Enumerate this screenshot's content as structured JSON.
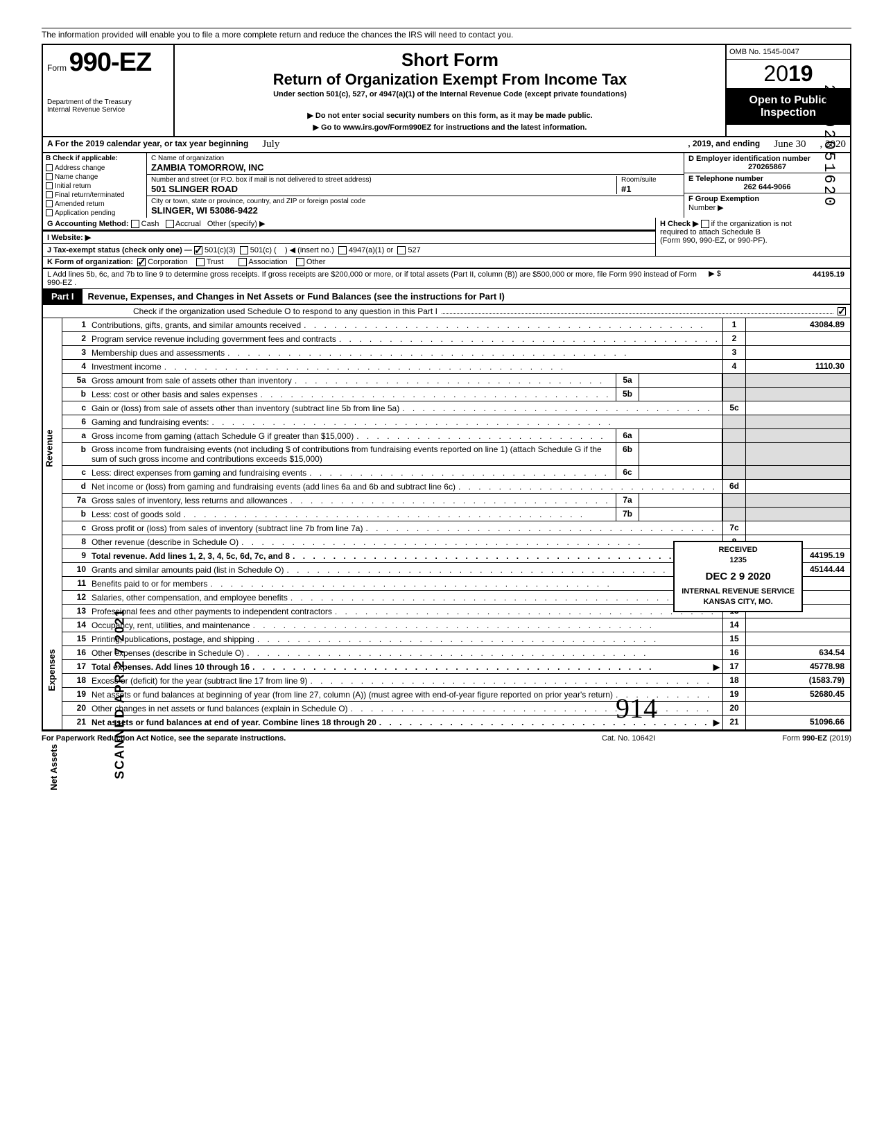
{
  "intro_line": "The information provided will enable you to file a more complete return and reduce the chances the IRS will need to contact you.",
  "form": {
    "prefix": "Form",
    "number": "990-EZ",
    "dept1": "Department of the Treasury",
    "dept2": "Internal Revenue Service"
  },
  "header": {
    "short": "Short Form",
    "title": "Return of Organization Exempt From Income Tax",
    "under": "Under section 501(c), 527, or 4947(a)(1) of the Internal Revenue Code (except private foundations)",
    "note1": "▶ Do not enter social security numbers on this form, as it may be made public.",
    "note2": "▶ Go to www.irs.gov/Form990EZ for instructions and the latest information."
  },
  "right": {
    "omb": "OMB No. 1545-0047",
    "year_prefix": "20",
    "year_suffix": "19",
    "open1": "Open to Public",
    "open2": "Inspection"
  },
  "lineA": {
    "label": "A For the 2019 calendar year, or tax year beginning",
    "begin": "July",
    "mid": ", 2019, and ending",
    "end": "June  30",
    "endyear": ", 2020"
  },
  "B": {
    "label": "B Check if applicable:",
    "opts": [
      "Address change",
      "Name change",
      "Initial return",
      "Final return/terminated",
      "Amended return",
      "Application pending"
    ]
  },
  "C": {
    "name_label": "C Name of organization",
    "name": "ZAMBIA TOMORROW, INC",
    "street_label": "Number and street (or P.O. box if mail is not delivered to street address)",
    "room_label": "Room/suite",
    "street": "501 SLINGER ROAD",
    "room": "#1",
    "city_label": "City or town, state or province, country, and ZIP or foreign postal code",
    "city": "SLINGER, WI 53086-9422"
  },
  "D": {
    "ein_label": "D Employer identification number",
    "ein": "270265867",
    "tel_label": "E Telephone number",
    "tel": "262 644-9066",
    "group_label": "F Group Exemption",
    "group_label2": "Number ▶"
  },
  "G": {
    "label": "G  Accounting Method:",
    "cash": "Cash",
    "accrual": "Accrual",
    "other": "Other (specify) ▶"
  },
  "H": {
    "txt1": "H Check ▶",
    "txt2": "if the organization is not",
    "txt3": "required to attach Schedule B",
    "txt4": "(Form 990, 990-EZ, or 990-PF)."
  },
  "I": {
    "label": "I  Website: ▶"
  },
  "J": {
    "label": "J  Tax-exempt status (check only one) —",
    "a": "501(c)(3)",
    "b": "501(c) (",
    "b2": ") ◀ (insert no.)",
    "c": "4947(a)(1) or",
    "d": "527"
  },
  "K": {
    "label": "K  Form of organization:",
    "corp": "Corporation",
    "trust": "Trust",
    "assoc": "Association",
    "other": "Other"
  },
  "L": {
    "txt": "L  Add lines 5b, 6c, and 7b to line 9 to determine gross receipts. If gross receipts are $200,000 or more, or if total assets (Part II, column (B)) are $500,000 or more, file Form 990 instead of Form 990-EZ .",
    "amt": "44195.19"
  },
  "part1": {
    "tag": "Part I",
    "title": "Revenue, Expenses, and Changes in Net Assets or Fund Balances (see the instructions for Part I)",
    "check": "Check if the organization used Schedule O to respond to any question in this Part I"
  },
  "sections": {
    "revenue": "Revenue",
    "expenses": "Expenses",
    "netassets": "Net Assets"
  },
  "lines": [
    {
      "n": "1",
      "d": "Contributions, gifts, grants, and similar amounts received",
      "rn": "1",
      "rv": "43084.89"
    },
    {
      "n": "2",
      "d": "Program service revenue including government fees and contracts",
      "rn": "2",
      "rv": ""
    },
    {
      "n": "3",
      "d": "Membership dues and assessments",
      "rn": "3",
      "rv": ""
    },
    {
      "n": "4",
      "d": "Investment income",
      "rn": "4",
      "rv": "1110.30"
    },
    {
      "n": "5a",
      "d": "Gross amount from sale of assets other than inventory",
      "mn": "5a",
      "mv": "",
      "shade": true
    },
    {
      "n": "b",
      "d": "Less: cost or other basis and sales expenses",
      "mn": "5b",
      "mv": "",
      "shade": true
    },
    {
      "n": "c",
      "d": "Gain or (loss) from sale of assets other than inventory (subtract line 5b from line 5a)",
      "rn": "5c",
      "rv": ""
    },
    {
      "n": "6",
      "d": "Gaming and fundraising events:",
      "shade_r": true
    },
    {
      "n": "a",
      "d": "Gross income from gaming (attach Schedule G if greater than $15,000)",
      "mn": "6a",
      "mv": "",
      "shade": true
    },
    {
      "n": "b",
      "d": "Gross income from fundraising events (not including  $                  of contributions from fundraising events reported on line 1) (attach Schedule G if the sum of such gross income and contributions exceeds $15,000)",
      "mn": "6b",
      "mv": "",
      "shade": true
    },
    {
      "n": "c",
      "d": "Less: direct expenses from gaming and fundraising events",
      "mn": "6c",
      "mv": "",
      "shade": true
    },
    {
      "n": "d",
      "d": "Net income or (loss) from gaming and fundraising events (add lines 6a and 6b and subtract line 6c)",
      "rn": "6d",
      "rv": ""
    },
    {
      "n": "7a",
      "d": "Gross sales of inventory, less returns and allowances",
      "mn": "7a",
      "mv": "",
      "shade": true
    },
    {
      "n": "b",
      "d": "Less: cost of goods sold",
      "mn": "7b",
      "mv": "",
      "shade": true
    },
    {
      "n": "c",
      "d": "Gross profit or (loss) from sales of inventory (subtract line 7b from line 7a)",
      "rn": "7c",
      "rv": ""
    },
    {
      "n": "8",
      "d": "Other revenue (describe in Schedule O)",
      "rn": "8",
      "rv": ""
    },
    {
      "n": "9",
      "d": "Total revenue. Add lines 1, 2, 3, 4, 5c, 6d, 7c, and 8",
      "rn": "9",
      "rv": "44195.19",
      "bold": true,
      "arrow": true
    },
    {
      "n": "10",
      "d": "Grants and similar amounts paid (list in Schedule O)",
      "rn": "10",
      "rv": "45144.44"
    },
    {
      "n": "11",
      "d": "Benefits paid to or for members",
      "rn": "11",
      "rv": ""
    },
    {
      "n": "12",
      "d": "Salaries, other compensation, and employee benefits",
      "rn": "12",
      "rv": ""
    },
    {
      "n": "13",
      "d": "Professional fees and other payments to independent contractors",
      "rn": "13",
      "rv": ""
    },
    {
      "n": "14",
      "d": "Occupancy, rent, utilities, and maintenance",
      "rn": "14",
      "rv": ""
    },
    {
      "n": "15",
      "d": "Printing, publications, postage, and shipping",
      "rn": "15",
      "rv": ""
    },
    {
      "n": "16",
      "d": "Other expenses (describe in Schedule O)",
      "rn": "16",
      "rv": "634.54"
    },
    {
      "n": "17",
      "d": "Total expenses. Add lines 10 through 16",
      "rn": "17",
      "rv": "45778.98",
      "bold": true,
      "arrow": true
    },
    {
      "n": "18",
      "d": "Excess or (deficit) for the year (subtract line 17 from line 9)",
      "rn": "18",
      "rv": "(1583.79)"
    },
    {
      "n": "19",
      "d": "Net assets or fund balances at beginning of year (from line 27, column (A)) (must agree with end-of-year figure reported on prior year's return)",
      "rn": "19",
      "rv": "52680.45"
    },
    {
      "n": "20",
      "d": "Other changes in net assets or fund balances (explain in Schedule O)",
      "rn": "20",
      "rv": ""
    },
    {
      "n": "21",
      "d": "Net assets or fund balances at end of year. Combine lines 18 through 20",
      "rn": "21",
      "rv": "51096.66",
      "bold": true,
      "arrow": true
    }
  ],
  "stamp": {
    "l1": "RECEIVED",
    "l2": "1235",
    "l3": "DEC 2 9 2020",
    "l4": "INTERNAL REVENUE SERVICE",
    "l5": "KANSAS CITY, MO."
  },
  "scanned": "SCANNED APR 2 7 2021",
  "vertnum": "29492051620",
  "footer": {
    "l": "For Paperwork Reduction Act Notice, see the separate instructions.",
    "m": "Cat. No. 10642I",
    "r": "Form 990-EZ  (2019)"
  },
  "sig": "914"
}
